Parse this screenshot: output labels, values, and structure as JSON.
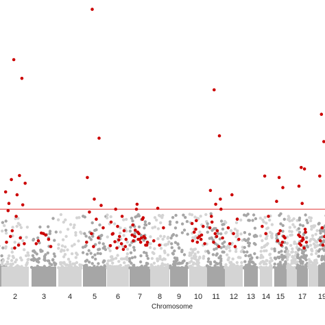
{
  "chart_data": {
    "type": "scatter",
    "subtype": "manhattan",
    "xlabel": "Chromosome",
    "ylabel": "",
    "title": "",
    "x_tick_labels": [
      "2",
      "3",
      "4",
      "5",
      "6",
      "7",
      "8",
      "9",
      "10",
      "11",
      "12",
      "13",
      "14",
      "15",
      "17",
      "19"
    ],
    "ylim": [
      0,
      9.3
    ],
    "threshold": 2.55,
    "grid": false,
    "legend": "none",
    "colors": {
      "significant": "#cc0000",
      "background_light": "#d4d4d4",
      "background_dark": "#a6a6a6",
      "threshold_line": "#e03030"
    },
    "series": [
      {
        "role": "highlighted",
        "points": [
          {
            "chr": "2",
            "y": 1.8
          },
          {
            "chr": "2",
            "y": 1.55
          },
          {
            "chr": "2",
            "y": 1.4
          },
          {
            "chr": "2",
            "y": 1.2
          },
          {
            "chr": "2",
            "y": 2.7
          },
          {
            "chr": "2",
            "y": 2.75
          },
          {
            "chr": "2",
            "y": 3.05
          },
          {
            "chr": "2",
            "y": 3.45
          },
          {
            "chr": "2",
            "y": 3.58
          },
          {
            "chr": "2",
            "y": 3.72
          },
          {
            "chr": "2",
            "y": 3.15
          },
          {
            "chr": "2",
            "y": 7.75
          },
          {
            "chr": "2",
            "y": 7.1
          },
          {
            "chr": "2",
            "y": 2.5
          },
          {
            "chr": "2",
            "y": 2.3
          },
          {
            "chr": "2",
            "y": 1.35
          },
          {
            "chr": "2",
            "y": 1.6
          },
          {
            "chr": "2",
            "y": 1.3
          },
          {
            "chr": "3",
            "y": 1.72
          },
          {
            "chr": "3",
            "y": 1.5
          },
          {
            "chr": "3",
            "y": 1.35
          },
          {
            "chr": "3",
            "y": 1.7
          },
          {
            "chr": "3",
            "y": 1.25
          },
          {
            "chr": "3",
            "y": 1.45
          },
          {
            "chr": "3",
            "y": 1.65
          },
          {
            "chr": "5",
            "y": 9.5
          },
          {
            "chr": "5",
            "y": 5.02
          },
          {
            "chr": "5",
            "y": 3.65
          },
          {
            "chr": "5",
            "y": 2.9
          },
          {
            "chr": "5",
            "y": 2.68
          },
          {
            "chr": "5",
            "y": 2.45
          },
          {
            "chr": "5",
            "y": 2.2
          },
          {
            "chr": "5",
            "y": 1.9
          },
          {
            "chr": "5",
            "y": 1.7
          },
          {
            "chr": "5",
            "y": 1.55
          },
          {
            "chr": "5",
            "y": 1.4
          },
          {
            "chr": "5",
            "y": 1.25
          },
          {
            "chr": "6",
            "y": 2.55
          },
          {
            "chr": "6",
            "y": 2.3
          },
          {
            "chr": "6",
            "y": 2.1
          },
          {
            "chr": "6",
            "y": 1.95
          },
          {
            "chr": "6",
            "y": 1.8
          },
          {
            "chr": "6",
            "y": 1.7
          },
          {
            "chr": "6",
            "y": 1.6
          },
          {
            "chr": "6",
            "y": 1.5
          },
          {
            "chr": "6",
            "y": 1.42
          },
          {
            "chr": "6",
            "y": 1.35
          },
          {
            "chr": "6",
            "y": 1.28
          },
          {
            "chr": "6",
            "y": 1.2
          },
          {
            "chr": "6",
            "y": 1.15
          },
          {
            "chr": "6",
            "y": 1.68
          },
          {
            "chr": "6",
            "y": 1.48
          },
          {
            "chr": "6",
            "y": 1.25
          },
          {
            "chr": "7",
            "y": 1.75
          },
          {
            "chr": "7",
            "y": 1.6
          },
          {
            "chr": "7",
            "y": 1.45
          },
          {
            "chr": "7",
            "y": 1.5
          },
          {
            "chr": "7",
            "y": 1.3
          },
          {
            "chr": "7",
            "y": 1.82
          },
          {
            "chr": "7",
            "y": 1.55
          },
          {
            "chr": "7",
            "y": 1.4
          },
          {
            "chr": "7",
            "y": 2.72
          },
          {
            "chr": "7",
            "y": 2.25
          },
          {
            "chr": "7",
            "y": 2.0
          },
          {
            "chr": "7",
            "y": 1.7
          },
          {
            "chr": "7",
            "y": 1.55
          },
          {
            "chr": "7",
            "y": 1.6
          },
          {
            "chr": "7",
            "y": 1.4
          },
          {
            "chr": "7",
            "y": 1.3
          },
          {
            "chr": "7",
            "y": 2.55
          },
          {
            "chr": "7",
            "y": 2.2
          },
          {
            "chr": "7",
            "y": 1.65
          },
          {
            "chr": "7",
            "y": 1.5
          },
          {
            "chr": "8",
            "y": 2.58
          },
          {
            "chr": "8",
            "y": 1.9
          },
          {
            "chr": "8",
            "y": 1.45
          },
          {
            "chr": "8",
            "y": 1.3
          },
          {
            "chr": "10",
            "y": 2.15
          },
          {
            "chr": "10",
            "y": 1.65
          },
          {
            "chr": "10",
            "y": 1.45
          },
          {
            "chr": "10",
            "y": 1.55
          },
          {
            "chr": "10",
            "y": 1.95
          },
          {
            "chr": "10",
            "y": 1.75
          },
          {
            "chr": "10",
            "y": 1.6
          },
          {
            "chr": "10",
            "y": 1.35
          },
          {
            "chr": "10",
            "y": 1.85
          },
          {
            "chr": "10",
            "y": 1.5
          },
          {
            "chr": "10",
            "y": 2.05
          },
          {
            "chr": "10",
            "y": 1.4
          },
          {
            "chr": "11",
            "y": 6.7
          },
          {
            "chr": "11",
            "y": 5.1
          },
          {
            "chr": "11",
            "y": 3.2
          },
          {
            "chr": "11",
            "y": 2.72
          },
          {
            "chr": "11",
            "y": 2.55
          },
          {
            "chr": "11",
            "y": 2.1
          },
          {
            "chr": "11",
            "y": 1.8
          },
          {
            "chr": "11",
            "y": 1.55
          },
          {
            "chr": "11",
            "y": 1.4
          },
          {
            "chr": "11",
            "y": 1.25
          },
          {
            "chr": "11",
            "y": 1.9
          },
          {
            "chr": "11",
            "y": 1.7
          },
          {
            "chr": "11",
            "y": 2.9
          },
          {
            "chr": "11",
            "y": 2.3
          },
          {
            "chr": "11",
            "y": 1.6
          },
          {
            "chr": "12",
            "y": 3.05
          },
          {
            "chr": "12",
            "y": 2.2
          },
          {
            "chr": "12",
            "y": 1.9
          },
          {
            "chr": "12",
            "y": 1.7
          },
          {
            "chr": "12",
            "y": 1.5
          },
          {
            "chr": "12",
            "y": 1.35
          },
          {
            "chr": "12",
            "y": 1.25
          },
          {
            "chr": "14",
            "y": 3.7
          },
          {
            "chr": "14",
            "y": 2.3
          },
          {
            "chr": "14",
            "y": 1.95
          },
          {
            "chr": "14",
            "y": 1.7
          },
          {
            "chr": "15",
            "y": 3.65
          },
          {
            "chr": "15",
            "y": 3.3
          },
          {
            "chr": "15",
            "y": 2.82
          },
          {
            "chr": "15",
            "y": 1.8
          },
          {
            "chr": "15",
            "y": 1.6
          },
          {
            "chr": "15",
            "y": 1.45
          },
          {
            "chr": "15",
            "y": 1.3
          },
          {
            "chr": "15",
            "y": 1.55
          },
          {
            "chr": "15",
            "y": 1.7
          },
          {
            "chr": "15",
            "y": 1.4
          },
          {
            "chr": "17",
            "y": 4.0
          },
          {
            "chr": "17",
            "y": 3.95
          },
          {
            "chr": "17",
            "y": 3.35
          },
          {
            "chr": "17",
            "y": 2.75
          },
          {
            "chr": "17",
            "y": 1.75
          },
          {
            "chr": "17",
            "y": 1.6
          },
          {
            "chr": "17",
            "y": 1.5
          },
          {
            "chr": "17",
            "y": 1.4
          },
          {
            "chr": "17",
            "y": 1.3
          },
          {
            "chr": "17",
            "y": 1.2
          },
          {
            "chr": "17",
            "y": 1.65
          },
          {
            "chr": "17",
            "y": 1.45
          },
          {
            "chr": "17",
            "y": 1.85
          },
          {
            "chr": "17",
            "y": 1.35
          },
          {
            "chr": "17",
            "y": 1.55
          },
          {
            "chr": "19",
            "y": 5.85
          },
          {
            "chr": "19",
            "y": 4.9
          },
          {
            "chr": "19",
            "y": 3.7
          },
          {
            "chr": "19",
            "y": 1.9
          },
          {
            "chr": "19",
            "y": 1.6
          },
          {
            "chr": "19",
            "y": 1.45
          },
          {
            "chr": "19",
            "y": 1.3
          }
        ]
      }
    ]
  }
}
